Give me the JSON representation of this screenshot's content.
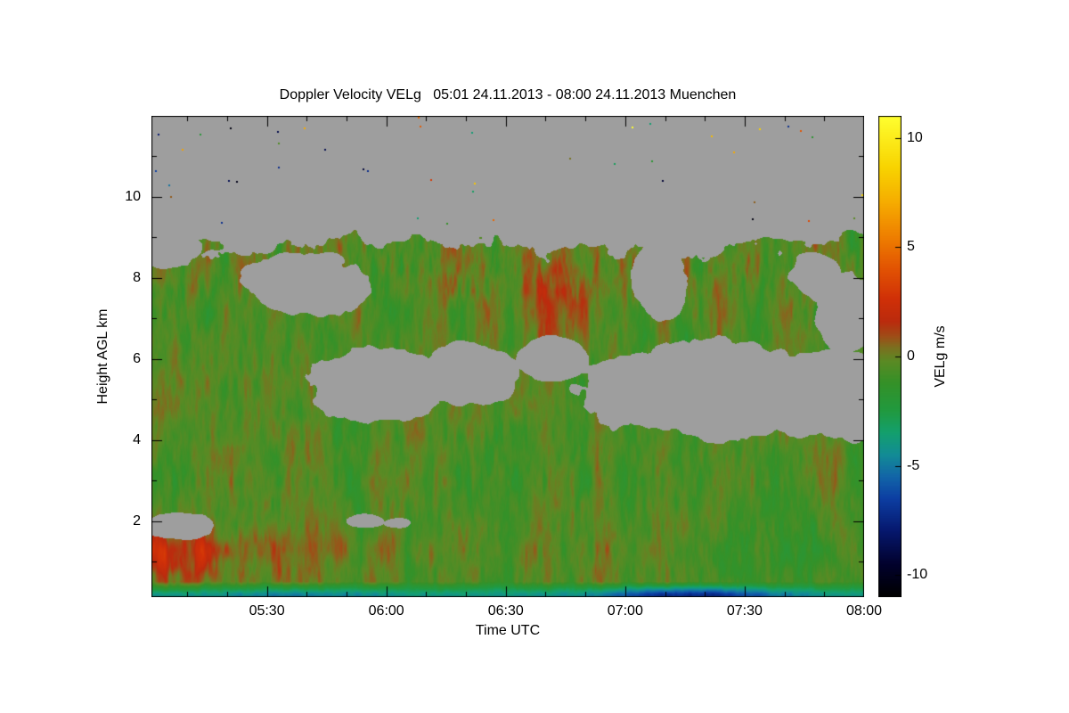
{
  "chart_data": {
    "type": "heatmap",
    "title": "Doppler Velocity VELg   05:01 24.11.2013 - 08:00 24.11.2013 Muenchen",
    "instrument_quantity": "Doppler Velocity VELg",
    "time_start": "05:01 24.11.2013",
    "time_end": "08:00 24.11.2013",
    "station": "Muenchen",
    "xlabel": "Time UTC",
    "ylabel": "Height AGL km",
    "x_range_minutes": [
      301,
      480
    ],
    "x_ticks": [
      {
        "label": "05:30",
        "minutes": 330
      },
      {
        "label": "06:00",
        "minutes": 360
      },
      {
        "label": "06:30",
        "minutes": 390
      },
      {
        "label": "07:00",
        "minutes": 420
      },
      {
        "label": "07:30",
        "minutes": 450
      },
      {
        "label": "08:00",
        "minutes": 480
      }
    ],
    "x_minor_tick_step_minutes": 10,
    "y_range_km": [
      0.13,
      12.0
    ],
    "y_ticks": [
      {
        "label": "2",
        "km": 2
      },
      {
        "label": "4",
        "km": 4
      },
      {
        "label": "6",
        "km": 6
      },
      {
        "label": "8",
        "km": 8
      },
      {
        "label": "10",
        "km": 10
      }
    ],
    "y_minor_ticks_km": [
      1,
      3,
      5,
      7,
      9,
      11
    ],
    "colorbar": {
      "label": "VELg m/s",
      "range": [
        -11,
        11
      ],
      "ticks": [
        {
          "label": "10",
          "v": 10
        },
        {
          "label": "5",
          "v": 5
        },
        {
          "label": "0",
          "v": 0
        },
        {
          "label": "-5",
          "v": -5
        },
        {
          "label": "-10",
          "v": -10
        }
      ],
      "stops": [
        {
          "v": -11,
          "color": "#000000"
        },
        {
          "v": -9.5,
          "color": "#02022e"
        },
        {
          "v": -8,
          "color": "#06186e"
        },
        {
          "v": -6.5,
          "color": "#0d3fa3"
        },
        {
          "v": -5.5,
          "color": "#1266a8"
        },
        {
          "v": -4.5,
          "color": "#128c96"
        },
        {
          "v": -3.5,
          "color": "#14a06e"
        },
        {
          "v": -2.5,
          "color": "#219a40"
        },
        {
          "v": -1.2,
          "color": "#359128"
        },
        {
          "v": -0.2,
          "color": "#5c8a24"
        },
        {
          "v": 0.4,
          "color": "#7c7020"
        },
        {
          "v": 0.9,
          "color": "#9e4f18"
        },
        {
          "v": 1.6,
          "color": "#bb2b0e"
        },
        {
          "v": 2.6,
          "color": "#d03008"
        },
        {
          "v": 4,
          "color": "#e25303"
        },
        {
          "v": 5.5,
          "color": "#ef8000"
        },
        {
          "v": 7,
          "color": "#f6ab00"
        },
        {
          "v": 8.6,
          "color": "#f8d300"
        },
        {
          "v": 11,
          "color": "#ffff30"
        }
      ]
    },
    "no_data_color": "#9e9e9e",
    "field": {
      "description": "Mostly weak negative velocities (green, -2 to 0 m/s) with reddish updraft mottling; gray = no signal above cloud top (~9 km) and in mid-level echo-free gaps; teal/dark-blue layer near the surface (~0.3 km, darkest 06:50-07:50); reddish patch below ~1.7 km before 05:30; sparse colored noise speckles above cloud top.",
      "seed": 7,
      "cloud_top_km": 9.0,
      "surface_band_top_km": 0.5,
      "holes": [
        [
          0.035,
          1.85,
          0.055,
          0.33
        ],
        [
          0.3,
          2.0,
          0.028,
          0.17
        ],
        [
          0.345,
          1.95,
          0.02,
          0.14
        ],
        [
          0.215,
          7.85,
          0.085,
          0.8
        ],
        [
          0.02,
          8.75,
          0.05,
          0.55
        ],
        [
          0.315,
          5.35,
          0.105,
          0.95
        ],
        [
          0.445,
          5.55,
          0.07,
          0.8
        ],
        [
          0.565,
          6.0,
          0.05,
          0.55
        ],
        [
          0.8,
          5.2,
          0.21,
          1.2
        ],
        [
          0.97,
          5.1,
          0.09,
          1.1
        ],
        [
          0.715,
          7.9,
          0.04,
          0.9
        ],
        [
          0.975,
          7.1,
          0.04,
          0.95
        ],
        [
          0.93,
          8.05,
          0.035,
          0.6
        ]
      ]
    }
  }
}
